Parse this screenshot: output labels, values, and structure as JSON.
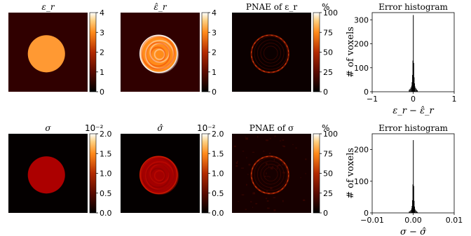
{
  "chart_data": [
    {
      "type": "heatmap",
      "panel": "eps-true",
      "title": "ε_r",
      "colorbar": {
        "ticks": [
          "0",
          "1",
          "2",
          "3",
          "4"
        ],
        "range": [
          0,
          4
        ],
        "multiplier": ""
      },
      "background_value": 0.5,
      "disk_value": 3.2,
      "texture": "none"
    },
    {
      "type": "heatmap",
      "panel": "eps-recon",
      "title": "ε̂_r",
      "colorbar": {
        "ticks": [
          "0",
          "1",
          "2",
          "3",
          "4"
        ],
        "range": [
          0,
          4
        ],
        "multiplier": ""
      },
      "background_value": 0.5,
      "disk_value": 3.1,
      "texture": "rings"
    },
    {
      "type": "heatmap",
      "panel": "eps-pnae",
      "title": "PNAE of ε_r",
      "colorbar": {
        "ticks": [
          "0",
          "25",
          "50",
          "75",
          "100"
        ],
        "range": [
          0,
          100
        ],
        "multiplier": "%"
      },
      "background_value": 3,
      "disk_value": 5,
      "texture": "edge"
    },
    {
      "type": "bar",
      "panel": "eps-hist",
      "title": "Error histogram",
      "xlabel": "ε_r − ε̂_r",
      "ylabel": "# of voxels",
      "xlim": [
        -1,
        1
      ],
      "ylim": [
        0,
        330
      ],
      "xticks": [
        "−1",
        "0",
        "1"
      ],
      "yticks": [
        "0",
        "100",
        "200",
        "300"
      ],
      "x": [
        -0.1,
        -0.08,
        -0.06,
        -0.04,
        -0.03,
        -0.02,
        -0.01,
        0.0,
        0.01,
        0.02,
        0.03,
        0.04,
        0.06,
        0.08,
        0.1
      ],
      "values": [
        8,
        12,
        18,
        25,
        40,
        70,
        130,
        320,
        120,
        60,
        35,
        22,
        15,
        10,
        6
      ]
    },
    {
      "type": "heatmap",
      "panel": "sig-true",
      "title": "σ",
      "colorbar": {
        "ticks": [
          "0.0",
          "0.5",
          "1.0",
          "1.5",
          "2.0"
        ],
        "range": [
          0,
          2
        ],
        "multiplier": "10⁻²"
      },
      "background_value": 0.02,
      "disk_value": 0.9,
      "texture": "none"
    },
    {
      "type": "heatmap",
      "panel": "sig-recon",
      "title": "σ̂",
      "colorbar": {
        "ticks": [
          "0.0",
          "0.5",
          "1.0",
          "1.5",
          "2.0"
        ],
        "range": [
          0,
          2
        ],
        "multiplier": "10⁻²"
      },
      "background_value": 0.02,
      "disk_value": 0.85,
      "texture": "rings"
    },
    {
      "type": "heatmap",
      "panel": "sig-pnae",
      "title": "PNAE of σ",
      "colorbar": {
        "ticks": [
          "0",
          "25",
          "50",
          "75",
          "100"
        ],
        "range": [
          0,
          100
        ],
        "multiplier": "%"
      },
      "background_value": 6,
      "disk_value": 8,
      "texture": "edge-noisy"
    },
    {
      "type": "bar",
      "panel": "sig-hist",
      "title": "Error histogram",
      "xlabel": "σ − σ̂",
      "ylabel": "# of voxels",
      "xlim": [
        -0.01,
        0.01
      ],
      "ylim": [
        0,
        250
      ],
      "xticks": [
        "−0.01",
        "0.00",
        "0.01"
      ],
      "yticks": [
        "0",
        "100",
        "200"
      ],
      "x": [
        -0.001,
        -0.0008,
        -0.0006,
        -0.0004,
        -0.0003,
        -0.0002,
        -0.0001,
        0.0,
        0.0001,
        0.0002,
        0.0003,
        0.0004,
        0.0006,
        0.0008,
        0.001
      ],
      "values": [
        4,
        6,
        9,
        14,
        22,
        40,
        90,
        230,
        85,
        38,
        20,
        12,
        8,
        5,
        3
      ]
    }
  ]
}
